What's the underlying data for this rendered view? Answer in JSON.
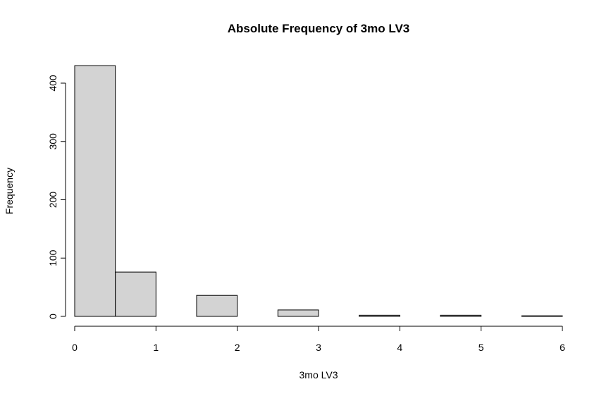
{
  "chart_data": {
    "type": "bar",
    "title": "Absolute Frequency of 3mo LV3",
    "xlabel": "3mo LV3",
    "ylabel": "Frequency",
    "xlim": [
      0,
      6
    ],
    "ylim": [
      0,
      430
    ],
    "x_ticks": [
      "0",
      "1",
      "2",
      "3",
      "4",
      "5",
      "6"
    ],
    "y_ticks": [
      "0",
      "100",
      "200",
      "300",
      "400"
    ],
    "bin_width": 0.5,
    "bins": [
      {
        "start": 0.0,
        "end": 0.5,
        "count": 430
      },
      {
        "start": 0.5,
        "end": 1.0,
        "count": 76
      },
      {
        "start": 1.0,
        "end": 1.5,
        "count": 0
      },
      {
        "start": 1.5,
        "end": 2.0,
        "count": 36
      },
      {
        "start": 2.0,
        "end": 2.5,
        "count": 0
      },
      {
        "start": 2.5,
        "end": 3.0,
        "count": 11
      },
      {
        "start": 3.0,
        "end": 3.5,
        "count": 0
      },
      {
        "start": 3.5,
        "end": 4.0,
        "count": 2
      },
      {
        "start": 4.0,
        "end": 4.5,
        "count": 0
      },
      {
        "start": 4.5,
        "end": 5.0,
        "count": 2
      },
      {
        "start": 5.0,
        "end": 5.5,
        "count": 0
      },
      {
        "start": 5.5,
        "end": 6.0,
        "count": 1
      }
    ],
    "grid": false,
    "bar_fill": "#d3d3d3",
    "bar_stroke": "#000000"
  }
}
